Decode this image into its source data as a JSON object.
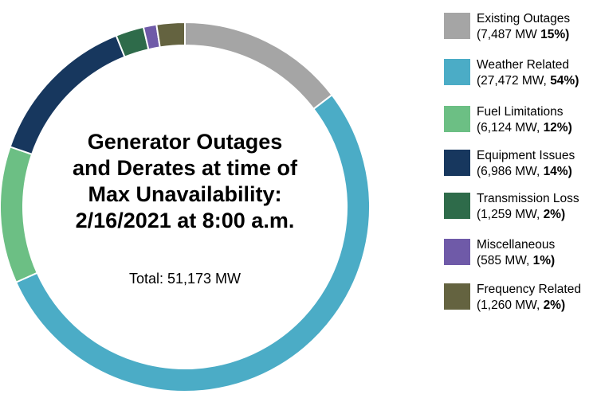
{
  "chart_data": {
    "type": "pie",
    "title_lines": [
      "Generator Outages",
      "and Derates at time of",
      "Max Unavailability:",
      "2/16/2021 at 8:00 a.m."
    ],
    "total_label": "Total: 51,173 MW",
    "slices": [
      {
        "label": "Existing Outages",
        "value_mw": 7487,
        "value_text": "(7,487 MW ",
        "percent_text": "15%)",
        "color": "#a5a5a5"
      },
      {
        "label": "Weather Related",
        "value_mw": 27472,
        "value_text": "(27,472 MW, ",
        "percent_text": "54%)",
        "color": "#4bacc6"
      },
      {
        "label": "Fuel Limitations",
        "value_mw": 6124,
        "value_text": "(6,124 MW, ",
        "percent_text": "12%)",
        "color": "#6cbf84"
      },
      {
        "label": "Equipment Issues",
        "value_mw": 6986,
        "value_text": "(6,986 MW, ",
        "percent_text": "14%)",
        "color": "#17375e"
      },
      {
        "label": "Transmission Loss",
        "value_mw": 1259,
        "value_text": "(1,259 MW, ",
        "percent_text": "2%)",
        "color": "#2e6b4a"
      },
      {
        "label": "Miscellaneous",
        "value_mw": 585,
        "value_text": "(585 MW, ",
        "percent_text": "1%)",
        "color": "#6f5aa8"
      },
      {
        "label": "Frequency Related",
        "value_mw": 1260,
        "value_text": "(1,260 MW, ",
        "percent_text": "2%)",
        "color": "#646340"
      }
    ],
    "legend_position": "right"
  }
}
